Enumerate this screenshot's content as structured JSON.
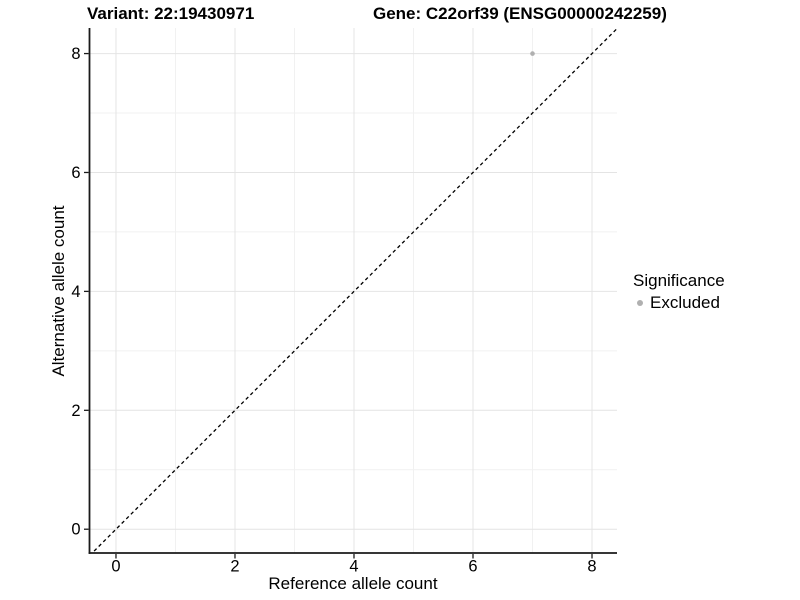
{
  "chart_data": {
    "type": "scatter",
    "title_left": "Variant: 22:19430971",
    "title_right": "Gene: C22orf39 (ENSG00000242259)",
    "xlabel": "Reference allele count",
    "ylabel": "Alternative allele count",
    "xlim": [
      -0.445,
      8.42
    ],
    "ylim": [
      -0.4,
      8.43
    ],
    "xticks": [
      0,
      2,
      4,
      6,
      8
    ],
    "yticks": [
      0,
      2,
      4,
      6,
      8
    ],
    "minor_xticks": [
      1,
      3,
      5,
      7
    ],
    "minor_yticks": [
      1,
      3,
      5,
      7
    ],
    "grid": true,
    "series": [
      {
        "name": "Excluded",
        "color": "#b0b0b0",
        "points": [
          {
            "x": 7,
            "y": 8
          }
        ]
      }
    ],
    "reference_line": {
      "slope": 1,
      "intercept": 0,
      "style": "dashed",
      "color": "#000000"
    },
    "legend": {
      "title": "Significance",
      "position": "right",
      "items": [
        {
          "label": "Excluded",
          "color": "#b0b0b0"
        }
      ]
    }
  },
  "colors": {
    "background": "#ffffff",
    "axis_line": "#1a1a1a",
    "tick_mark": "#1a1a1a",
    "tick_label": "#000000",
    "grid_major": "#e4e4e4",
    "grid_minor": "#f1f1f1"
  }
}
